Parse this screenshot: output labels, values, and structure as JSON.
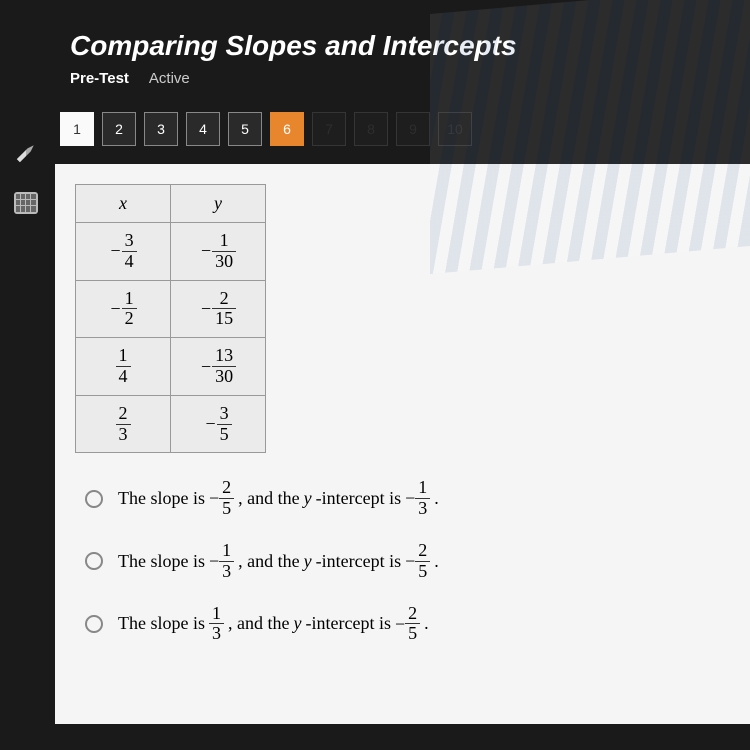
{
  "header": {
    "title": "Comparing Slopes and Intercepts",
    "tab_pretest": "Pre-Test",
    "tab_active": "Active"
  },
  "nav": {
    "questions": [
      {
        "n": "1",
        "state": "filled"
      },
      {
        "n": "2",
        "state": "normal"
      },
      {
        "n": "3",
        "state": "normal"
      },
      {
        "n": "4",
        "state": "normal"
      },
      {
        "n": "5",
        "state": "normal"
      },
      {
        "n": "6",
        "state": "current"
      },
      {
        "n": "7",
        "state": "dim"
      },
      {
        "n": "8",
        "state": "dim"
      },
      {
        "n": "9",
        "state": "dim"
      },
      {
        "n": "10",
        "state": "dim"
      }
    ]
  },
  "table": {
    "header_x": "x",
    "header_y": "y",
    "rows": [
      {
        "x_neg": "−",
        "x_num": "3",
        "x_den": "4",
        "y_neg": "−",
        "y_num": "1",
        "y_den": "30"
      },
      {
        "x_neg": "−",
        "x_num": "1",
        "x_den": "2",
        "y_neg": "−",
        "y_num": "2",
        "y_den": "15"
      },
      {
        "x_neg": "",
        "x_num": "1",
        "x_den": "4",
        "y_neg": "−",
        "y_num": "13",
        "y_den": "30"
      },
      {
        "x_neg": "",
        "x_num": "2",
        "x_den": "3",
        "y_neg": "−",
        "y_num": "3",
        "y_den": "5"
      }
    ]
  },
  "options": {
    "a": {
      "pre": "The slope is",
      "s_neg": "−",
      "s_num": "2",
      "s_den": "5",
      "mid": ", and the ",
      "yint": "y",
      "mid2": "-intercept is",
      "i_neg": "−",
      "i_num": "1",
      "i_den": "3",
      "end": "."
    },
    "b": {
      "pre": "The slope is",
      "s_neg": "−",
      "s_num": "1",
      "s_den": "3",
      "mid": ", and the ",
      "yint": "y",
      "mid2": "-intercept is",
      "i_neg": "−",
      "i_num": "2",
      "i_den": "5",
      "end": "."
    },
    "c": {
      "pre": "The slope is",
      "s_neg": "",
      "s_num": "1",
      "s_den": "3",
      "mid": ", and the ",
      "yint": "y",
      "mid2": "-intercept is",
      "i_neg": "−",
      "i_num": "2",
      "i_den": "5",
      "end": "."
    }
  },
  "colors": {
    "bg_dark": "#1a1a1a",
    "accent": "#e8862e",
    "content_bg": "#f5f5f5",
    "cell_bg": "#ebebeb",
    "border": "#999999"
  }
}
